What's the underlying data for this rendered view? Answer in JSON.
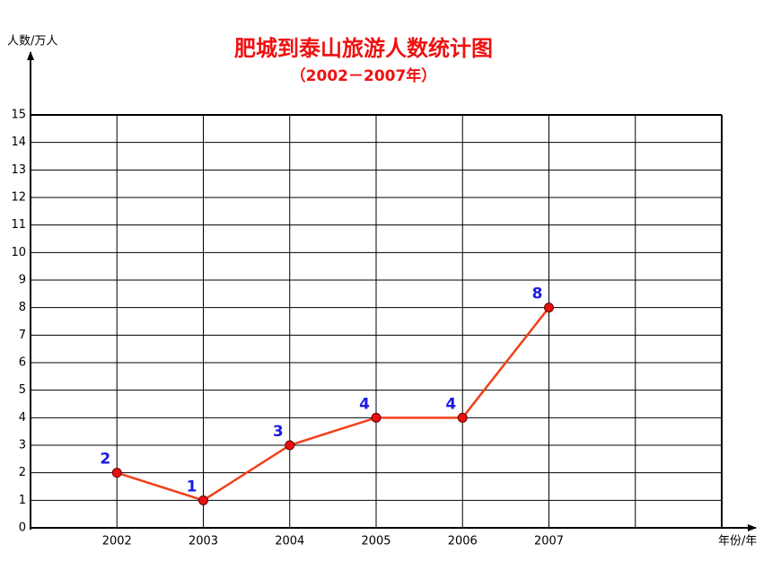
{
  "chart_data": {
    "type": "line",
    "title": "肥城到泰山旅游人数统计图",
    "subtitle": "（2002－2007年）",
    "y_label": "人数/万人",
    "x_label": "年份/年",
    "categories": [
      "2002",
      "2003",
      "2004",
      "2005",
      "2006",
      "2007"
    ],
    "series": [
      {
        "name": "人数",
        "color": "#f0401a",
        "marker_color": "#e81010",
        "values": [
          2,
          1,
          3,
          4,
          4,
          8
        ]
      }
    ],
    "ylim": [
      0,
      15
    ],
    "yticks": [
      0,
      1,
      2,
      3,
      4,
      5,
      6,
      7,
      8,
      9,
      10,
      11,
      12,
      13,
      14,
      15
    ],
    "grid": true
  }
}
